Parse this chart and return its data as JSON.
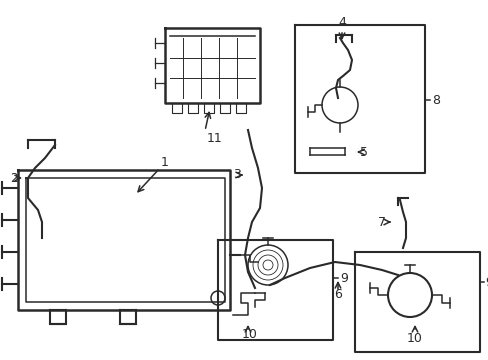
{
  "bg_color": "#ffffff",
  "line_color": "#2a2a2a",
  "figsize": [
    4.89,
    3.6
  ],
  "dpi": 100,
  "xlim": [
    0,
    489
  ],
  "ylim": [
    0,
    360
  ]
}
